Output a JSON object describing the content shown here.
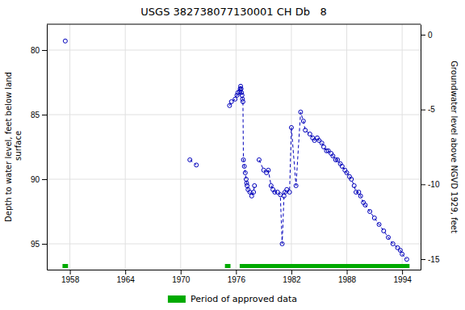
{
  "chart_data": {
    "type": "line",
    "title": "USGS 382738077130001 CH Db   8",
    "y_label": "Depth to water level, feet below land\n surface",
    "y2_label": "Groundwater level above NGVD 1929, feet",
    "xlim": [
      1955.5,
      1996.0
    ],
    "ylim": [
      97.0,
      78.0
    ],
    "y2lim": [
      -15.7,
      0.7
    ],
    "xticks": [
      1958,
      1964,
      1970,
      1976,
      1982,
      1988,
      1994
    ],
    "yticks": [
      80,
      85,
      90,
      95
    ],
    "y2ticks": [
      0,
      -5,
      -10,
      -15
    ],
    "grid": true,
    "x": [
      1957.5,
      null,
      1971.0,
      1971.7,
      null,
      1975.3,
      1975.5,
      1975.9,
      1976.1,
      1976.2,
      1976.4,
      1976.45,
      1976.5,
      1976.55,
      1976.6,
      1976.65,
      1976.7,
      1976.75,
      1976.8,
      1976.9,
      1977.0,
      1977.1,
      1977.15,
      1977.2,
      1977.3,
      1977.5,
      1977.7,
      1977.9,
      1978.0,
      null,
      1978.5,
      1979.0,
      1979.3,
      1979.5,
      1979.8,
      1980.0,
      1980.2,
      1980.5,
      1980.8,
      1981.0,
      1981.2,
      1981.3,
      1981.5,
      1981.8,
      1982.0,
      1982.5,
      1983.0,
      1983.3,
      1983.5,
      1984.0,
      1984.3,
      1984.5,
      1984.8,
      1985.0,
      1985.3,
      1985.5,
      1985.8,
      1986.0,
      1986.3,
      1986.5,
      1986.8,
      1987.0,
      1987.3,
      1987.5,
      1987.8,
      1988.0,
      1988.3,
      1988.5,
      1988.8,
      1989.0,
      1989.3,
      1989.5,
      1989.8,
      1990.0,
      1990.5,
      1991.0,
      1991.5,
      1992.0,
      1992.5,
      1993.0,
      1993.5,
      1993.8,
      1994.0,
      1994.5
    ],
    "series": [
      {
        "color": "#0000bb",
        "marker": "circle",
        "line_style": "dashed",
        "values": [
          79.3,
          null,
          88.5,
          88.9,
          null,
          84.3,
          84.0,
          83.8,
          83.5,
          83.3,
          83.2,
          83.0,
          82.8,
          83.0,
          83.3,
          83.5,
          83.8,
          84.0,
          88.5,
          89.0,
          89.5,
          90.0,
          90.3,
          90.5,
          90.8,
          91.0,
          91.3,
          91.0,
          90.5,
          null,
          88.5,
          89.3,
          89.5,
          89.3,
          90.5,
          90.8,
          91.0,
          91.0,
          91.2,
          95.0,
          91.3,
          91.0,
          90.8,
          91.0,
          86.0,
          90.5,
          84.8,
          85.5,
          86.2,
          86.5,
          86.8,
          87.0,
          86.8,
          87.0,
          87.2,
          87.5,
          87.8,
          87.8,
          88.0,
          88.2,
          88.5,
          88.5,
          88.8,
          89.0,
          89.3,
          89.5,
          89.8,
          90.0,
          90.5,
          91.0,
          91.0,
          91.3,
          91.8,
          92.0,
          92.5,
          93.0,
          93.5,
          94.0,
          94.5,
          95.0,
          95.3,
          95.5,
          95.8,
          96.2
        ]
      }
    ],
    "spans": [
      {
        "name": "Period of approved data",
        "color": "#00aa00",
        "ranges": [
          [
            1957.2,
            1957.8
          ],
          [
            1974.8,
            1975.4
          ],
          [
            1976.4,
            1994.8
          ]
        ]
      }
    ]
  }
}
